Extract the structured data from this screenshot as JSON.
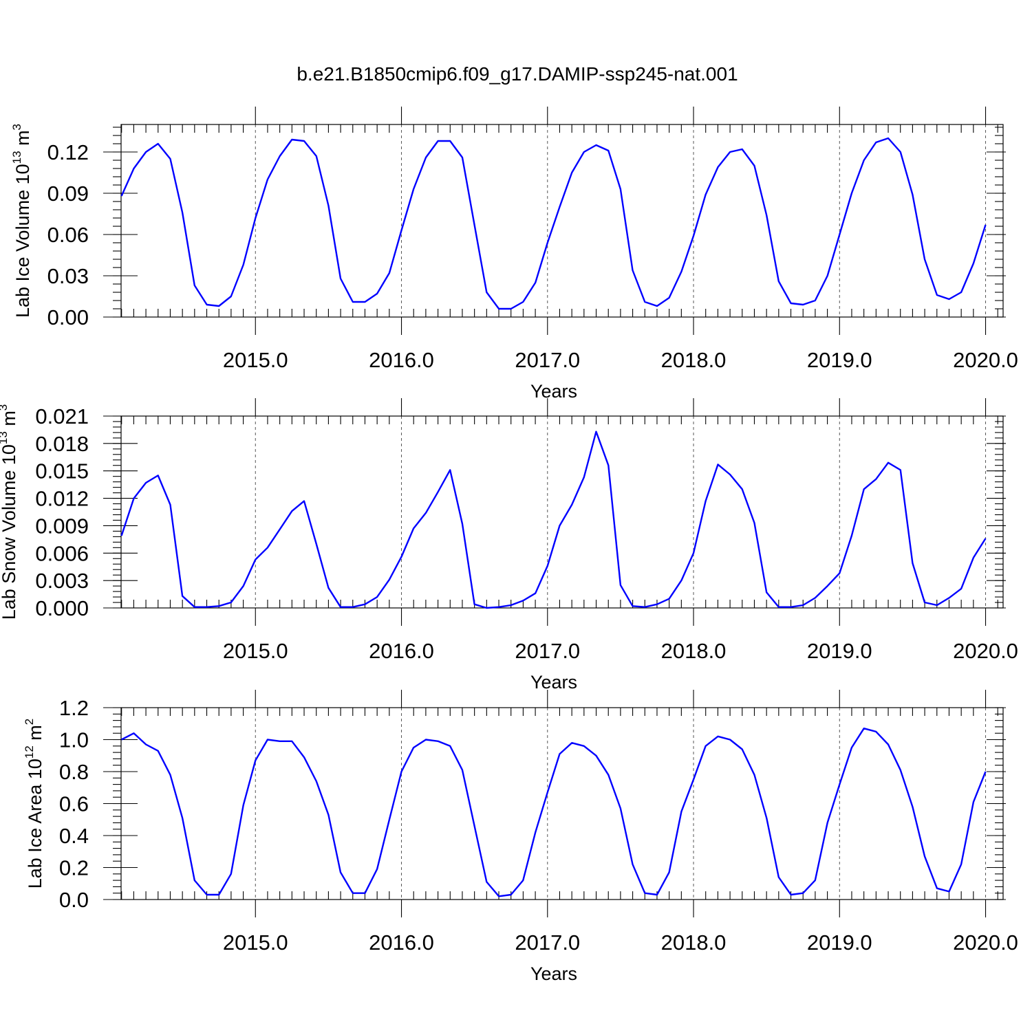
{
  "title": "b.e21.B1850cmip6.f09_g17.DAMIP-ssp245-nat.001",
  "line_color": "#0000ff",
  "chart_data": [
    {
      "type": "line",
      "title": "b.e21.B1850cmip6.f09_g17.DAMIP-ssp245-nat.001",
      "xlabel": "Years",
      "ylabel_text": "Lab Ice Volume 10",
      "ylabel_exponent": "13",
      "ylabel_unit": " m",
      "ylabel_unit_exponent": "3",
      "xlim": [
        2014.08,
        2020.12
      ],
      "ylim": [
        0,
        0.14
      ],
      "x_ticks": [
        "2015.0",
        "2016.0",
        "2017.0",
        "2018.0",
        "2019.0",
        "2020.0"
      ],
      "y_ticks": [
        "0.00",
        "0.03",
        "0.06",
        "0.09",
        "0.12"
      ],
      "grid": "dashed vertical at years",
      "x": [
        2014.083,
        2014.167,
        2014.25,
        2014.333,
        2014.417,
        2014.5,
        2014.583,
        2014.667,
        2014.75,
        2014.833,
        2014.917,
        2015.0,
        2015.083,
        2015.167,
        2015.25,
        2015.333,
        2015.417,
        2015.5,
        2015.583,
        2015.667,
        2015.75,
        2015.833,
        2015.917,
        2016.0,
        2016.083,
        2016.167,
        2016.25,
        2016.333,
        2016.417,
        2016.5,
        2016.583,
        2016.667,
        2016.75,
        2016.833,
        2016.917,
        2017.0,
        2017.083,
        2017.167,
        2017.25,
        2017.333,
        2017.417,
        2017.5,
        2017.583,
        2017.667,
        2017.75,
        2017.833,
        2017.917,
        2018.0,
        2018.083,
        2018.167,
        2018.25,
        2018.333,
        2018.417,
        2018.5,
        2018.583,
        2018.667,
        2018.75,
        2018.833,
        2018.917,
        2019.0,
        2019.083,
        2019.167,
        2019.25,
        2019.333,
        2019.417,
        2019.5,
        2019.583,
        2019.667,
        2019.75,
        2019.833,
        2019.917,
        2020.0
      ],
      "values": [
        0.088,
        0.108,
        0.12,
        0.126,
        0.115,
        0.076,
        0.023,
        0.009,
        0.008,
        0.015,
        0.038,
        0.072,
        0.1,
        0.117,
        0.129,
        0.128,
        0.117,
        0.081,
        0.028,
        0.011,
        0.011,
        0.017,
        0.032,
        0.063,
        0.093,
        0.116,
        0.128,
        0.128,
        0.116,
        0.067,
        0.018,
        0.006,
        0.006,
        0.011,
        0.025,
        0.054,
        0.08,
        0.105,
        0.12,
        0.125,
        0.121,
        0.093,
        0.034,
        0.011,
        0.008,
        0.014,
        0.033,
        0.059,
        0.089,
        0.109,
        0.12,
        0.122,
        0.11,
        0.074,
        0.026,
        0.01,
        0.009,
        0.012,
        0.03,
        0.06,
        0.09,
        0.114,
        0.127,
        0.13,
        0.12,
        0.089,
        0.042,
        0.016,
        0.013,
        0.018,
        0.039,
        0.067
      ]
    },
    {
      "type": "line",
      "xlabel": "Years",
      "ylabel_text": "Lab Snow Volume 10",
      "ylabel_exponent": "13",
      "ylabel_unit": " m",
      "ylabel_unit_exponent": "3",
      "xlim": [
        2014.08,
        2020.12
      ],
      "ylim": [
        0,
        0.021
      ],
      "x_ticks": [
        "2015.0",
        "2016.0",
        "2017.0",
        "2018.0",
        "2019.0",
        "2020.0"
      ],
      "y_ticks": [
        "0.000",
        "0.003",
        "0.006",
        "0.009",
        "0.012",
        "0.015",
        "0.018",
        "0.021"
      ],
      "grid": "dashed vertical at years",
      "x": [
        2014.083,
        2014.167,
        2014.25,
        2014.333,
        2014.417,
        2014.5,
        2014.583,
        2014.667,
        2014.75,
        2014.833,
        2014.917,
        2015.0,
        2015.083,
        2015.167,
        2015.25,
        2015.333,
        2015.417,
        2015.5,
        2015.583,
        2015.667,
        2015.75,
        2015.833,
        2015.917,
        2016.0,
        2016.083,
        2016.167,
        2016.25,
        2016.333,
        2016.417,
        2016.5,
        2016.583,
        2016.667,
        2016.75,
        2016.833,
        2016.917,
        2017.0,
        2017.083,
        2017.167,
        2017.25,
        2017.333,
        2017.417,
        2017.5,
        2017.583,
        2017.667,
        2017.75,
        2017.833,
        2017.917,
        2018.0,
        2018.083,
        2018.167,
        2018.25,
        2018.333,
        2018.417,
        2018.5,
        2018.583,
        2018.667,
        2018.75,
        2018.833,
        2018.917,
        2019.0,
        2019.083,
        2019.167,
        2019.25,
        2019.333,
        2019.417,
        2019.5,
        2019.583,
        2019.667,
        2019.75,
        2019.833,
        2019.917,
        2020.0
      ],
      "values": [
        0.0079,
        0.012,
        0.0137,
        0.0145,
        0.0113,
        0.0013,
        0.0001,
        0.0001,
        0.0002,
        0.0006,
        0.0024,
        0.0053,
        0.0066,
        0.0086,
        0.0106,
        0.0117,
        0.007,
        0.0022,
        0.0001,
        0.0001,
        0.0004,
        0.0012,
        0.0031,
        0.0056,
        0.0087,
        0.0104,
        0.0127,
        0.0151,
        0.0092,
        0.0004,
        0.0,
        0.0001,
        0.0003,
        0.0008,
        0.0016,
        0.0046,
        0.009,
        0.0113,
        0.0143,
        0.0193,
        0.0156,
        0.0025,
        0.0002,
        0.0001,
        0.0004,
        0.001,
        0.003,
        0.006,
        0.0117,
        0.0157,
        0.0146,
        0.013,
        0.0093,
        0.0017,
        0.0001,
        0.0001,
        0.0003,
        0.0011,
        0.0024,
        0.0038,
        0.0079,
        0.013,
        0.0141,
        0.0159,
        0.0151,
        0.0049,
        0.0006,
        0.0003,
        0.0011,
        0.0021,
        0.0055,
        0.0076
      ]
    },
    {
      "type": "line",
      "xlabel": "Years",
      "ylabel_text": "Lab Ice Area 10",
      "ylabel_exponent": "12",
      "ylabel_unit": " m",
      "ylabel_unit_exponent": "2",
      "xlim": [
        2014.08,
        2020.12
      ],
      "ylim": [
        0,
        1.2
      ],
      "x_ticks": [
        "2015.0",
        "2016.0",
        "2017.0",
        "2018.0",
        "2019.0",
        "2020.0"
      ],
      "y_ticks": [
        "0.0",
        "0.2",
        "0.4",
        "0.6",
        "0.8",
        "1.0",
        "1.2"
      ],
      "grid": "dashed vertical at years",
      "x": [
        2014.083,
        2014.167,
        2014.25,
        2014.333,
        2014.417,
        2014.5,
        2014.583,
        2014.667,
        2014.75,
        2014.833,
        2014.917,
        2015.0,
        2015.083,
        2015.167,
        2015.25,
        2015.333,
        2015.417,
        2015.5,
        2015.583,
        2015.667,
        2015.75,
        2015.833,
        2015.917,
        2016.0,
        2016.083,
        2016.167,
        2016.25,
        2016.333,
        2016.417,
        2016.5,
        2016.583,
        2016.667,
        2016.75,
        2016.833,
        2016.917,
        2017.0,
        2017.083,
        2017.167,
        2017.25,
        2017.333,
        2017.417,
        2017.5,
        2017.583,
        2017.667,
        2017.75,
        2017.833,
        2017.917,
        2018.0,
        2018.083,
        2018.167,
        2018.25,
        2018.333,
        2018.417,
        2018.5,
        2018.583,
        2018.667,
        2018.75,
        2018.833,
        2018.917,
        2019.0,
        2019.083,
        2019.167,
        2019.25,
        2019.333,
        2019.417,
        2019.5,
        2019.583,
        2019.667,
        2019.75,
        2019.833,
        2019.917,
        2020.0
      ],
      "values": [
        1.0,
        1.04,
        0.97,
        0.93,
        0.78,
        0.51,
        0.12,
        0.03,
        0.03,
        0.16,
        0.59,
        0.87,
        1.0,
        0.99,
        0.99,
        0.89,
        0.74,
        0.53,
        0.17,
        0.04,
        0.04,
        0.19,
        0.5,
        0.8,
        0.95,
        1.0,
        0.99,
        0.96,
        0.81,
        0.46,
        0.11,
        0.02,
        0.03,
        0.12,
        0.42,
        0.67,
        0.91,
        0.98,
        0.96,
        0.9,
        0.78,
        0.57,
        0.22,
        0.04,
        0.03,
        0.17,
        0.55,
        0.75,
        0.96,
        1.02,
        1.0,
        0.94,
        0.78,
        0.51,
        0.14,
        0.03,
        0.04,
        0.12,
        0.48,
        0.72,
        0.95,
        1.07,
        1.05,
        0.97,
        0.81,
        0.58,
        0.27,
        0.07,
        0.05,
        0.22,
        0.61,
        0.8
      ]
    }
  ]
}
